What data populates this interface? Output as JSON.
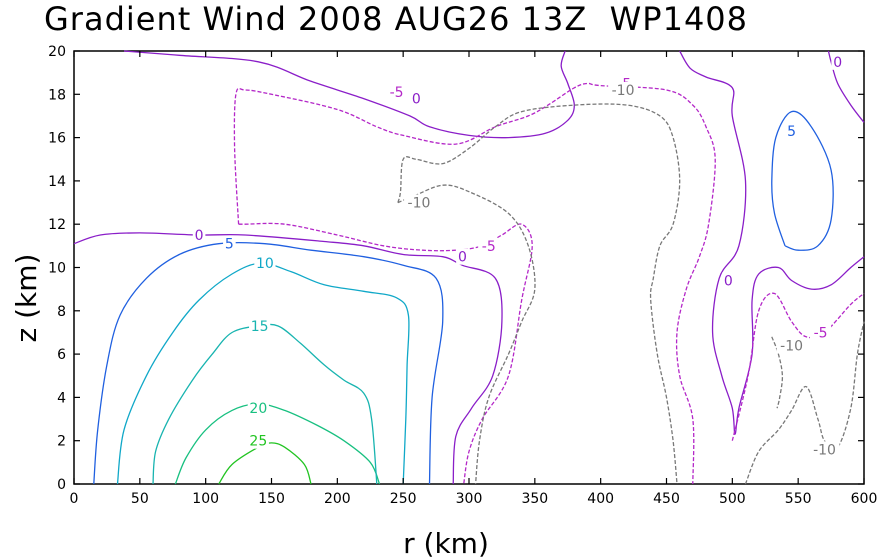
{
  "chart_data": {
    "type": "contour",
    "title": "Gradient Wind 2008 AUG26 13Z  WP1408",
    "xlabel": "r (km)",
    "ylabel": "z (km)",
    "xlim": [
      0,
      600
    ],
    "ylim": [
      0,
      20
    ],
    "x_ticks": [
      0,
      50,
      100,
      150,
      200,
      250,
      300,
      350,
      400,
      450,
      500,
      550,
      600
    ],
    "y_ticks": [
      0,
      2,
      4,
      6,
      8,
      10,
      12,
      14,
      16,
      18,
      20
    ],
    "grid": false,
    "contours": [
      {
        "level": 25,
        "color": "#22c422",
        "dashed": false,
        "lines": [
          [
            [
              110,
              0
            ],
            [
              120,
              0.9
            ],
            [
              140,
              1.7
            ],
            [
              150,
              1.9
            ],
            [
              160,
              1.7
            ],
            [
              175,
              0.9
            ],
            [
              180,
              0
            ]
          ]
        ],
        "labels": [
          [
            140,
            2.0
          ]
        ]
      },
      {
        "level": 20,
        "color": "#18c080",
        "dashed": false,
        "lines": [
          [
            [
              77,
              0
            ],
            [
              85,
              1.2
            ],
            [
              100,
              2.5
            ],
            [
              120,
              3.4
            ],
            [
              140,
              3.7
            ],
            [
              160,
              3.4
            ],
            [
              185,
              2.7
            ],
            [
              205,
              2.0
            ],
            [
              225,
              1.0
            ],
            [
              232,
              0
            ]
          ]
        ],
        "labels": [
          [
            140,
            3.5
          ]
        ]
      },
      {
        "level": 15,
        "color": "#18b4b0",
        "dashed": false,
        "lines": [
          [
            [
              60,
              0
            ],
            [
              62,
              1.5
            ],
            [
              72,
              3.0
            ],
            [
              90,
              4.8
            ],
            [
              105,
              6.0
            ],
            [
              120,
              7.0
            ],
            [
              140,
              7.3
            ],
            [
              155,
              7.3
            ],
            [
              172,
              6.5
            ],
            [
              190,
              5.5
            ],
            [
              205,
              4.8
            ],
            [
              220,
              4.2
            ],
            [
              226,
              3.0
            ],
            [
              230,
              0
            ]
          ]
        ],
        "labels": [
          [
            141,
            7.3
          ]
        ]
      },
      {
        "level": 10,
        "color": "#10a8c8",
        "dashed": false,
        "lines": [
          [
            [
              33,
              0
            ],
            [
              38,
              2.5
            ],
            [
              55,
              5.0
            ],
            [
              75,
              7.0
            ],
            [
              95,
              8.5
            ],
            [
              120,
              9.7
            ],
            [
              142,
              10.2
            ],
            [
              165,
              9.8
            ],
            [
              190,
              9.2
            ],
            [
              220,
              8.9
            ],
            [
              245,
              8.6
            ],
            [
              254,
              7.8
            ],
            [
              253,
              5.5
            ],
            [
              252,
              3.0
            ],
            [
              250,
              0
            ]
          ]
        ],
        "labels": [
          [
            145,
            10.2
          ]
        ]
      },
      {
        "level": 5,
        "color": "#2060e0",
        "dashed": false,
        "lines": [
          [
            [
              15,
              0
            ],
            [
              18,
              2.5
            ],
            [
              25,
              5.5
            ],
            [
              35,
              7.8
            ],
            [
              55,
              9.5
            ],
            [
              80,
              10.6
            ],
            [
              110,
              11.1
            ],
            [
              145,
              11.1
            ],
            [
              180,
              10.8
            ],
            [
              220,
              10.5
            ],
            [
              250,
              10.1
            ],
            [
              275,
              9.5
            ],
            [
              280,
              7.5
            ],
            [
              272,
              4.0
            ],
            [
              270,
              0
            ]
          ],
          [
            [
              540,
              11.0
            ],
            [
              532,
              12.5
            ],
            [
              530,
              14.0
            ],
            [
              533,
              16.0
            ],
            [
              545,
              17.2
            ],
            [
              560,
              16.5
            ],
            [
              575,
              14.5
            ],
            [
              575,
              12.2
            ],
            [
              565,
              11.0
            ],
            [
              550,
              10.8
            ],
            [
              540,
              11.0
            ]
          ]
        ],
        "labels": [
          [
            118,
            11.1
          ],
          [
            545,
            16.3
          ]
        ]
      },
      {
        "level": 0,
        "color": "#8a1ec8",
        "dashed": false,
        "lines": [
          [
            [
              0,
              11.1
            ],
            [
              20,
              11.5
            ],
            [
              50,
              11.6
            ],
            [
              95,
              11.5
            ],
            [
              130,
              11.5
            ],
            [
              190,
              11.2
            ],
            [
              220,
              11.0
            ],
            [
              250,
              10.6
            ],
            [
              280,
              10.5
            ],
            [
              295,
              10.1
            ],
            [
              320,
              9.5
            ],
            [
              325,
              7.5
            ],
            [
              318,
              5.0
            ],
            [
              302,
              3.5
            ],
            [
              290,
              2.2
            ],
            [
              288,
              0
            ]
          ],
          [
            [
              38,
              20
            ],
            [
              80,
              19.8
            ],
            [
              140,
              19.5
            ],
            [
              180,
              18.6
            ],
            [
              220,
              17.8
            ],
            [
              255,
              17.0
            ],
            [
              270,
              16.5
            ],
            [
              300,
              16.1
            ],
            [
              330,
              16.0
            ],
            [
              358,
              16.2
            ],
            [
              375,
              16.8
            ],
            [
              380,
              17.5
            ],
            [
              375,
              18.5
            ],
            [
              370,
              19.3
            ],
            [
              373,
              20
            ]
          ],
          [
            [
              460,
              20
            ],
            [
              468,
              19.2
            ],
            [
              480,
              18.8
            ],
            [
              500,
              18.3
            ],
            [
              500,
              17.0
            ],
            [
              510,
              14.0
            ],
            [
              505,
              11.0
            ],
            [
              490,
              9.5
            ],
            [
              485,
              7.0
            ],
            [
              492,
              5.0
            ],
            [
              500,
              3.5
            ],
            [
              502,
              2.3
            ],
            [
              505,
              3.5
            ],
            [
              515,
              6.0
            ],
            [
              515,
              8.5
            ],
            [
              520,
              9.7
            ],
            [
              535,
              10.0
            ],
            [
              545,
              9.4
            ],
            [
              560,
              9.0
            ],
            [
              575,
              9.2
            ],
            [
              590,
              10.0
            ],
            [
              600,
              10.5
            ]
          ],
          [
            [
              573,
              20
            ],
            [
              575,
              19.5
            ],
            [
              580,
              18.5
            ],
            [
              590,
              17.5
            ],
            [
              600,
              16.7
            ]
          ]
        ],
        "labels": [
          [
            95,
            11.5
          ],
          [
            260,
            17.8
          ],
          [
            295,
            10.5
          ],
          [
            497,
            9.4
          ],
          [
            580,
            19.5
          ]
        ]
      },
      {
        "level": -5,
        "color": "#b428c8",
        "dashed": true,
        "lines": [
          [
            [
              125,
              12.0
            ],
            [
              130,
              12.0
            ],
            [
              160,
              12.0
            ],
            [
              200,
              11.5
            ],
            [
              235,
              11.0
            ],
            [
              265,
              10.8
            ],
            [
              290,
              10.8
            ],
            [
              310,
              11.0
            ],
            [
              325,
              11.5
            ],
            [
              340,
              12.0
            ],
            [
              348,
              11.0
            ],
            [
              340,
              8.5
            ],
            [
              330,
              5.0
            ],
            [
              310,
              3.0
            ],
            [
              300,
              1.5
            ],
            [
              296,
              0
            ]
          ],
          [
            [
              125,
              12.0
            ],
            [
              122,
              15.5
            ],
            [
              123,
              18.0
            ],
            [
              130,
              18.2
            ],
            [
              150,
              18.0
            ],
            [
              200,
              17.3
            ],
            [
              230,
              16.5
            ],
            [
              250,
              16.1
            ],
            [
              290,
              15.7
            ],
            [
              320,
              16.5
            ],
            [
              345,
              17.0
            ],
            [
              360,
              17.5
            ],
            [
              380,
              18.3
            ],
            [
              390,
              18.5
            ],
            [
              400,
              18.4
            ],
            [
              450,
              18.2
            ],
            [
              470,
              17.5
            ],
            [
              480,
              16.5
            ],
            [
              487,
              15.0
            ],
            [
              482,
              12.0
            ],
            [
              475,
              10.5
            ],
            [
              465,
              9.0
            ],
            [
              458,
              7.0
            ],
            [
              460,
              5.0
            ],
            [
              470,
              3.0
            ],
            [
              470,
              0
            ]
          ],
          [
            [
              500,
              2.0
            ],
            [
              512,
              5.0
            ],
            [
              520,
              8.0
            ],
            [
              532,
              8.8
            ],
            [
              545,
              7.5
            ],
            [
              556,
              6.8
            ],
            [
              570,
              7.0
            ],
            [
              590,
              8.3
            ],
            [
              600,
              8.8
            ]
          ]
        ],
        "labels": [
          [
            245,
            18.1
          ],
          [
            315,
            11.0
          ],
          [
            418,
            18.5
          ],
          [
            567,
            7.0
          ]
        ]
      },
      {
        "level": -10,
        "color": "#787878",
        "dashed": true,
        "lines": [
          [
            [
              246,
              13.0
            ],
            [
              248,
              13.5
            ],
            [
              250,
              15.0
            ],
            [
              260,
              15.0
            ],
            [
              280,
              14.8
            ],
            [
              300,
              15.5
            ],
            [
              320,
              16.5
            ],
            [
              340,
              17.2
            ],
            [
              380,
              17.5
            ],
            [
              420,
              17.5
            ],
            [
              445,
              17.0
            ],
            [
              455,
              16.0
            ],
            [
              460,
              14.0
            ],
            [
              455,
              12.0
            ],
            [
              445,
              11.0
            ],
            [
              440,
              9.5
            ],
            [
              438,
              8.5
            ],
            [
              443,
              6.0
            ],
            [
              450,
              4.0
            ],
            [
              455,
              2.0
            ],
            [
              458,
              0
            ]
          ],
          [
            [
              246,
              13.0
            ],
            [
              258,
              13.3
            ],
            [
              280,
              13.8
            ],
            [
              300,
              13.5
            ],
            [
              330,
              12.5
            ],
            [
              345,
              11.0
            ],
            [
              350,
              9.0
            ],
            [
              340,
              7.5
            ],
            [
              330,
              6.0
            ],
            [
              315,
              4.0
            ],
            [
              308,
              2.0
            ],
            [
              305,
              0
            ]
          ],
          [
            [
              530,
              6.8
            ],
            [
              535,
              6.0
            ],
            [
              538,
              5.0
            ],
            [
              536,
              4.0
            ],
            [
              534,
              3.5
            ]
          ],
          [
            [
              510,
              0
            ],
            [
              520,
              1.5
            ],
            [
              535,
              2.5
            ],
            [
              545,
              3.4
            ],
            [
              556,
              4.5
            ],
            [
              565,
              3.0
            ],
            [
              570,
              2.0
            ],
            [
              580,
              1.7
            ],
            [
              590,
              3.5
            ],
            [
              595,
              6.0
            ],
            [
              600,
              7.5
            ]
          ]
        ],
        "labels": [
          [
            262,
            13.0
          ],
          [
            417,
            18.2
          ],
          [
            545,
            6.4
          ],
          [
            570,
            1.6
          ]
        ]
      }
    ]
  }
}
